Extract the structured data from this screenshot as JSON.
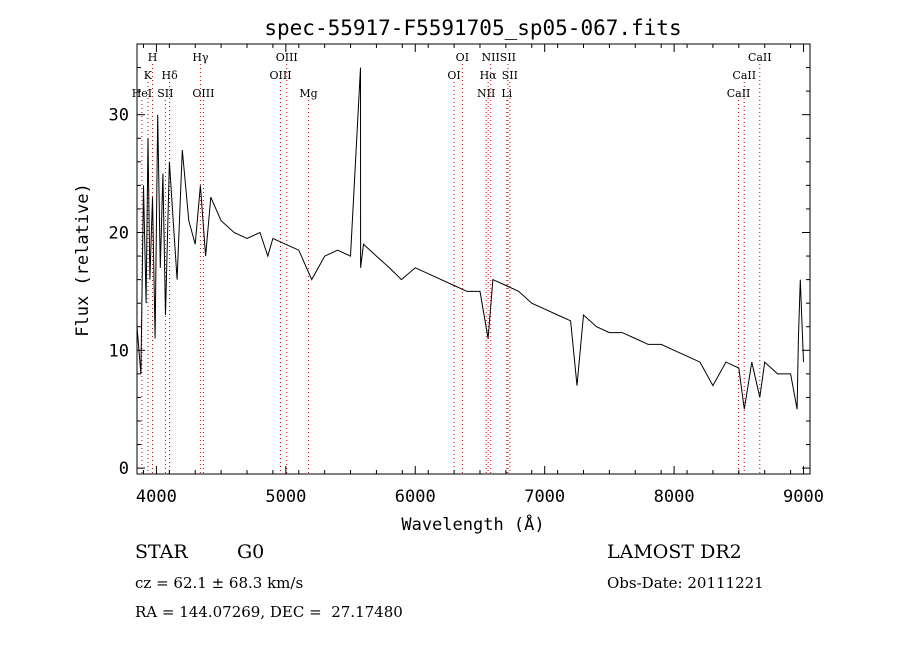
{
  "chart_data": {
    "type": "line",
    "title": "spec-55917-F5591705_sp05-067.fits",
    "xlabel": "Wavelength (Å)",
    "ylabel": "Flux (relative)",
    "xlim": [
      3850,
      9050
    ],
    "ylim": [
      -0.5,
      36
    ],
    "x_ticks": [
      4000,
      5000,
      6000,
      7000,
      8000,
      9000
    ],
    "y_ticks": [
      0,
      10,
      20,
      30
    ],
    "grid": false,
    "line_color": "#000000",
    "marker_color": "#cc0000",
    "series": [
      {
        "name": "flux",
        "x": [
          3850,
          3880,
          3900,
          3920,
          3935,
          3950,
          3970,
          3990,
          4010,
          4030,
          4050,
          4070,
          4100,
          4130,
          4160,
          4200,
          4250,
          4300,
          4340,
          4380,
          4420,
          4500,
          4600,
          4700,
          4800,
          4861,
          4900,
          5000,
          5100,
          5200,
          5300,
          5400,
          5500,
          5577,
          5578,
          5600,
          5700,
          5800,
          5893,
          6000,
          6100,
          6200,
          6300,
          6400,
          6500,
          6563,
          6600,
          6700,
          6800,
          6900,
          7000,
          7100,
          7200,
          7250,
          7300,
          7400,
          7500,
          7600,
          7700,
          7800,
          7900,
          8000,
          8100,
          8200,
          8300,
          8400,
          8500,
          8542,
          8600,
          8662,
          8700,
          8800,
          8900,
          8950,
          8960,
          8975,
          9000
        ],
        "y": [
          12,
          8,
          24,
          14,
          28,
          16,
          23,
          11,
          30,
          17,
          25,
          13,
          26,
          21,
          16,
          27,
          21,
          19,
          24,
          18,
          23,
          21,
          20,
          19.5,
          20,
          18,
          19.5,
          19,
          18.5,
          16,
          18,
          18.5,
          18,
          34,
          17,
          19,
          18,
          17,
          16,
          17,
          16.5,
          16,
          15.5,
          15,
          15,
          11,
          16,
          15.5,
          15,
          14,
          13.5,
          13,
          12.5,
          7,
          13,
          12,
          11.5,
          11.5,
          11,
          10.5,
          10.5,
          10,
          9.5,
          9,
          7,
          9,
          8.5,
          5,
          9,
          6,
          9,
          8,
          8,
          5,
          11,
          16,
          9
        ]
      }
    ],
    "lines": [
      {
        "label": "H",
        "wavelength": 3970,
        "row": 1
      },
      {
        "label": "K",
        "wavelength": 3934,
        "row": 2
      },
      {
        "label": "HeI",
        "wavelength": 3888,
        "row": 3
      },
      {
        "label": "Hδ",
        "wavelength": 4102,
        "row": 2
      },
      {
        "label": "SII",
        "wavelength": 4069,
        "row": 3
      },
      {
        "label": "Hγ",
        "wavelength": 4340,
        "row": 1
      },
      {
        "label": "OIII",
        "wavelength": 4363,
        "row": 3
      },
      {
        "label": "OIII",
        "wavelength": 5007,
        "row": 1
      },
      {
        "label": "OIII",
        "wavelength": 4959,
        "row": 2
      },
      {
        "label": "Mg",
        "wavelength": 5175,
        "row": 3
      },
      {
        "label": "OI",
        "wavelength": 6364,
        "row": 1
      },
      {
        "label": "OI",
        "wavelength": 6300,
        "row": 2
      },
      {
        "label": "NII",
        "wavelength": 6583,
        "row": 1
      },
      {
        "label": "SII",
        "wavelength": 6716,
        "row": 1
      },
      {
        "label": "Hα",
        "wavelength": 6563,
        "row": 2
      },
      {
        "label": "SII",
        "wavelength": 6731,
        "row": 2
      },
      {
        "label": "NII",
        "wavelength": 6548,
        "row": 3
      },
      {
        "label": "Li",
        "wavelength": 6707,
        "row": 3
      },
      {
        "label": "CaII",
        "wavelength": 8662,
        "row": 1
      },
      {
        "label": "CaII",
        "wavelength": 8542,
        "row": 2
      },
      {
        "label": "CaII",
        "wavelength": 8498,
        "row": 3
      }
    ]
  },
  "info": {
    "object_class": "STAR",
    "subclass": "G0",
    "survey": "LAMOST DR2",
    "cz": "cz = 62.1 ± 68.3 km/s",
    "obs_date": "Obs-Date: 20111221",
    "coords": "RA = 144.07269, DEC =  27.17480"
  }
}
